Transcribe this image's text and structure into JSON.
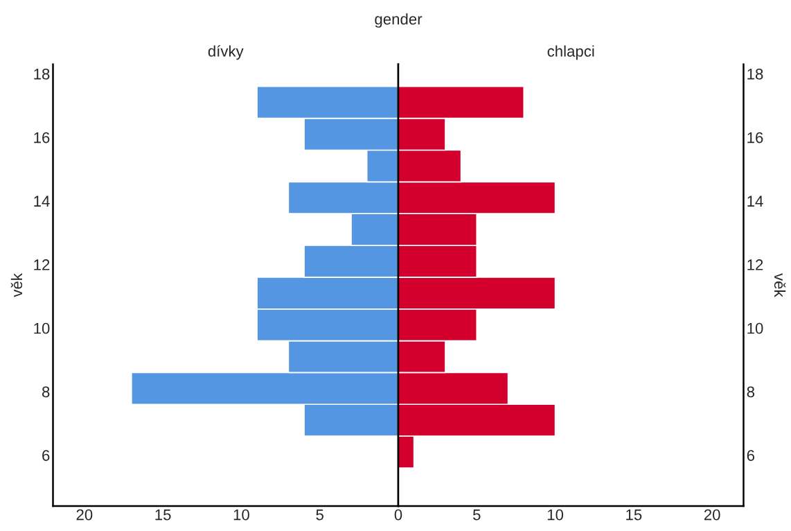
{
  "chart_data": [
    {
      "type": "histogram",
      "orientation": "horizontal",
      "title": "gender",
      "subtitle": "dívky",
      "ylabel": "věk",
      "bins": [
        5.6,
        6.6,
        7.6,
        8.6,
        9.6,
        10.6,
        11.6,
        12.6,
        13.6,
        14.6,
        15.6,
        16.6,
        17.6
      ],
      "values": [
        null,
        6,
        17,
        7,
        9,
        9,
        6,
        3,
        7,
        2,
        6,
        9
      ],
      "color": "#5596e3",
      "xlim": [
        22,
        0
      ],
      "xticks": [
        20,
        15,
        10,
        5,
        0
      ],
      "ylim": [
        4.4,
        18.3
      ],
      "yticks": [
        6,
        8,
        10,
        12,
        14,
        16,
        18
      ],
      "grid": false
    },
    {
      "type": "histogram",
      "orientation": "horizontal",
      "subtitle": "chlapci",
      "ylabel": "věk",
      "bins": [
        5.6,
        6.6,
        7.6,
        8.6,
        9.6,
        10.6,
        11.6,
        12.6,
        13.6,
        14.6,
        15.6,
        16.6,
        17.6
      ],
      "values": [
        1,
        10,
        7,
        3,
        5,
        10,
        5,
        5,
        10,
        4,
        3,
        8
      ],
      "color": "#d3002d",
      "xlim": [
        0,
        22
      ],
      "xticks": [
        5,
        10,
        15,
        20
      ],
      "ylim": [
        4.4,
        18.3
      ],
      "yticks": [
        6,
        8,
        10,
        12,
        14,
        16,
        18
      ],
      "grid": false
    }
  ]
}
